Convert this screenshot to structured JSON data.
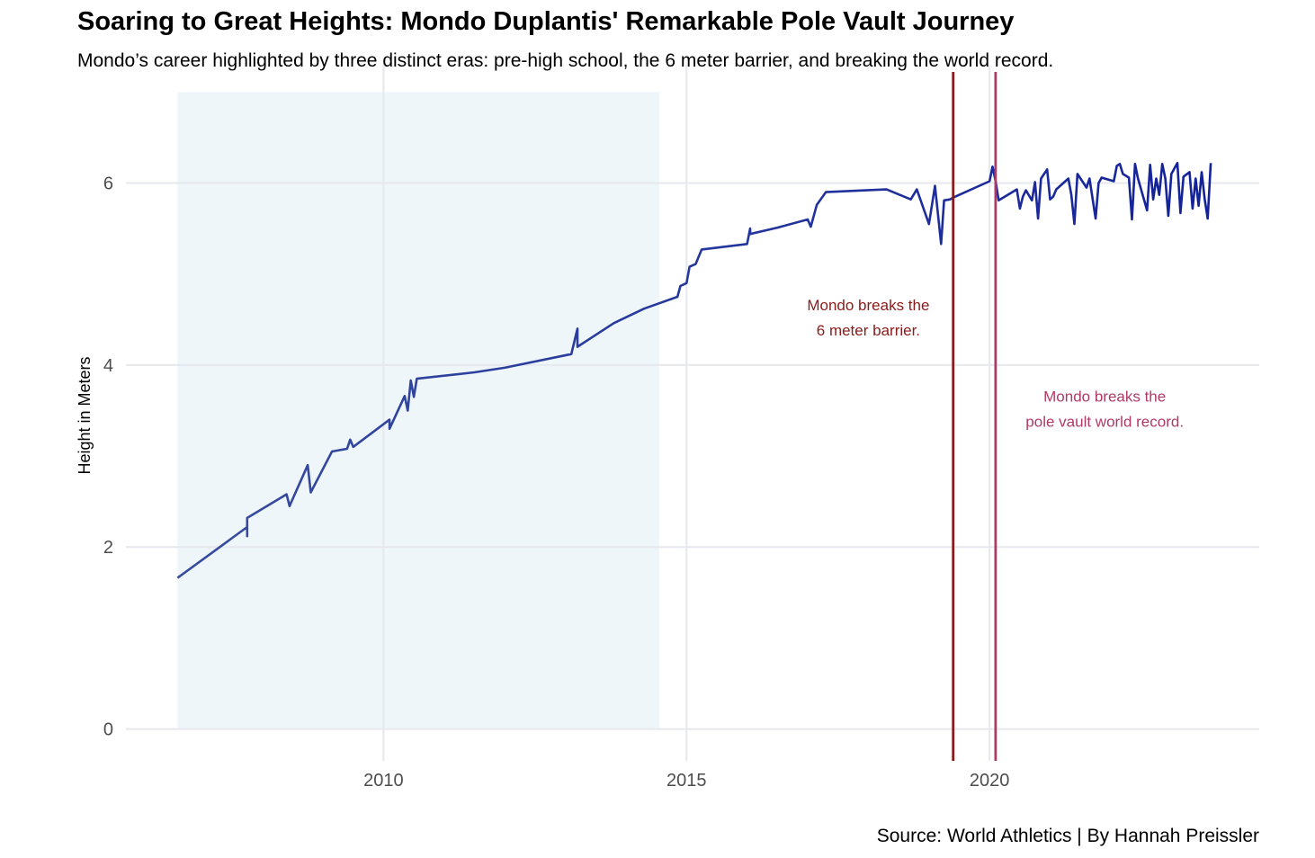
{
  "title": "Soaring to Great Heights: Mondo Duplantis' Remarkable Pole Vault Journey",
  "subtitle": "Mondo’s career highlighted by three distinct eras: pre-high school, the 6 meter barrier, and breaking the world record.",
  "caption": "Source: World Athletics | By Hannah Preissler",
  "chart_data": {
    "type": "line",
    "title": "Soaring to Great Heights: Mondo Duplantis' Remarkable Pole Vault Journey",
    "xlabel": "",
    "ylabel": "Height in Meters",
    "xlim": [
      2005.75,
      2024.45
    ],
    "ylim": [
      -0.35,
      7.3
    ],
    "x_ticks": [
      2010,
      2015,
      2020
    ],
    "y_ticks": [
      0,
      2,
      4,
      6
    ],
    "grid": true,
    "legend": "none",
    "shaded_region": {
      "x": [
        2006.6,
        2014.55
      ],
      "y": [
        0,
        7
      ],
      "color": "#eef6fa"
    },
    "vlines": [
      {
        "x": 2019.4,
        "color": "#8b1a1a"
      },
      {
        "x": 2020.1,
        "color": "#b03a66"
      }
    ],
    "annotations": [
      {
        "lines": [
          "Mondo breaks the",
          "6 meter barrier."
        ],
        "x": 2018.0,
        "y": 4.6,
        "color": "#8b1a1a"
      },
      {
        "lines": [
          "Mondo breaks the",
          "pole vault world record."
        ],
        "x": 2021.9,
        "y": 3.6,
        "color": "#b03a66"
      }
    ],
    "line_color_start": "#3a4f9e",
    "line_color_end": "#12209a",
    "series": [
      {
        "x": [
          2006.6,
          2007.75,
          2007.75,
          2007.75,
          2008.4,
          2008.45,
          2008.75,
          2008.8,
          2009.15,
          2009.4,
          2009.45,
          2009.5,
          2010.1,
          2010.1,
          2010.35,
          2010.4,
          2010.45,
          2010.5,
          2010.55,
          2011.5,
          2012.0,
          2013.1,
          2013.2,
          2013.2,
          2013.8,
          2014.3,
          2014.85,
          2014.9,
          2014.9,
          2015.0,
          2015.05,
          2015.15,
          2015.25,
          2016.0,
          2016.05,
          2016.05,
          2016.5,
          2017.0,
          2017.05,
          2017.15,
          2017.3,
          2018.3,
          2018.7,
          2018.8,
          2019.0,
          2019.1,
          2019.2,
          2019.25,
          2019.35,
          2019.4,
          2020.0,
          2020.05,
          2020.1,
          2020.15,
          2020.45,
          2020.5,
          2020.55,
          2020.6,
          2020.7,
          2020.75,
          2020.8,
          2020.85,
          2020.95,
          2021.0,
          2021.05,
          2021.1,
          2021.3,
          2021.35,
          2021.4,
          2021.45,
          2021.6,
          2021.65,
          2021.75,
          2021.8,
          2021.85,
          2022.05,
          2022.1,
          2022.15,
          2022.2,
          2022.3,
          2022.35,
          2022.4,
          2022.45,
          2022.6,
          2022.65,
          2022.7,
          2022.75,
          2022.8,
          2022.85,
          2022.9,
          2022.95,
          2023.0,
          2023.1,
          2023.15,
          2023.2,
          2023.3,
          2023.35,
          2023.4,
          2023.45,
          2023.5,
          2023.55,
          2023.6,
          2023.65
        ],
        "y": [
          1.66,
          2.22,
          2.12,
          2.32,
          2.58,
          2.45,
          2.9,
          2.6,
          3.05,
          3.08,
          3.18,
          3.1,
          3.4,
          3.3,
          3.66,
          3.5,
          3.83,
          3.65,
          3.85,
          3.92,
          3.97,
          4.12,
          4.4,
          4.2,
          4.46,
          4.62,
          4.75,
          4.87,
          4.87,
          4.9,
          5.08,
          5.11,
          5.27,
          5.33,
          5.5,
          5.44,
          5.51,
          5.6,
          5.52,
          5.76,
          5.9,
          5.93,
          5.82,
          5.93,
          5.55,
          5.97,
          5.33,
          5.81,
          5.82,
          5.84,
          6.02,
          6.18,
          6.02,
          5.81,
          5.93,
          5.72,
          5.85,
          5.92,
          5.81,
          6.01,
          5.61,
          6.05,
          6.15,
          5.82,
          5.85,
          5.93,
          6.05,
          5.87,
          5.55,
          6.1,
          5.95,
          6.05,
          5.61,
          6.0,
          6.06,
          6.02,
          6.19,
          6.21,
          6.1,
          6.06,
          5.6,
          6.21,
          6.05,
          5.7,
          6.2,
          5.82,
          6.05,
          5.87,
          6.21,
          6.05,
          5.64,
          6.1,
          6.22,
          5.67,
          6.07,
          6.12,
          5.72,
          6.05,
          5.75,
          6.12,
          5.82,
          5.61,
          6.22
        ]
      }
    ]
  }
}
